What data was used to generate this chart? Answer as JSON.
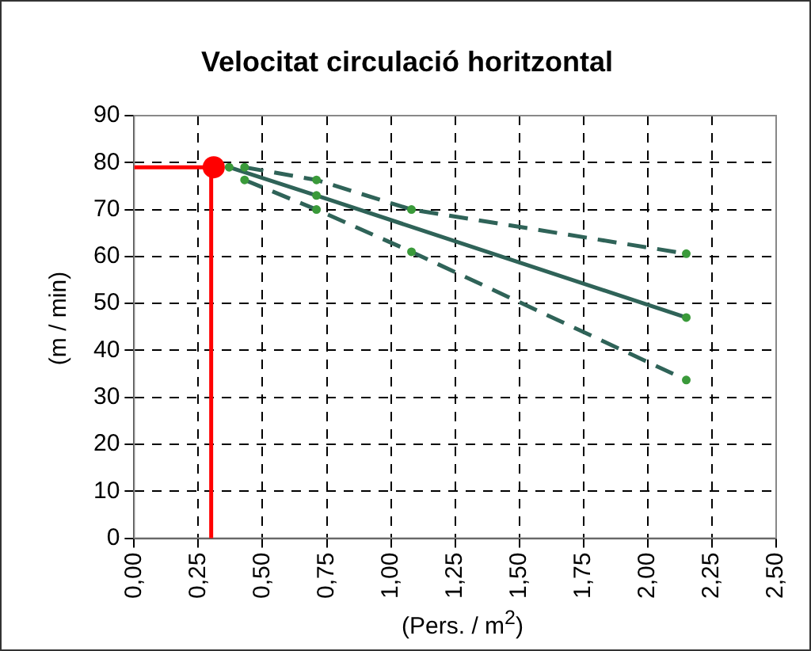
{
  "chart_data": {
    "type": "line",
    "title": "Velocitat circulació horitzontal",
    "xlabel": "(Pers. / m$^{2}$)",
    "ylabel": "(m / min)",
    "xlim": [
      0,
      2.5
    ],
    "ylim": [
      0,
      90
    ],
    "xticks": [
      {
        "value": 0,
        "label": "0,00"
      },
      {
        "value": 0.25,
        "label": "0,25"
      },
      {
        "value": 0.5,
        "label": "0,50"
      },
      {
        "value": 0.75,
        "label": "0,75"
      },
      {
        "value": 1,
        "label": "1,00"
      },
      {
        "value": 1.25,
        "label": "1,25"
      },
      {
        "value": 1.5,
        "label": "1,50"
      },
      {
        "value": 1.75,
        "label": "1,75"
      },
      {
        "value": 2,
        "label": "2,00"
      },
      {
        "value": 2.25,
        "label": "2,25"
      },
      {
        "value": 2.5,
        "label": "2,50"
      }
    ],
    "yticks": [
      0,
      10,
      20,
      30,
      40,
      50,
      60,
      70,
      80,
      90
    ],
    "grid": true,
    "legend": false,
    "series": [
      {
        "color": "#2f6358",
        "x": [
          0.43,
          0.71,
          1.08,
          2.15
        ],
        "values": [
          79,
          76.3,
          70,
          60.6
        ],
        "line_style": "dashed",
        "marker": "circle"
      },
      {
        "color": "#2f6358",
        "x": [
          0.37,
          0.71,
          2.15
        ],
        "values": [
          79,
          73,
          47
        ],
        "line_style": "solid",
        "marker": "circle"
      },
      {
        "color": "#2f6358",
        "x": [
          0.43,
          0.71,
          1.08,
          2.15
        ],
        "values": [
          76.3,
          70,
          61,
          33.7
        ],
        "line_style": "dashed",
        "marker": "circle"
      },
      {
        "color": "#ff0000",
        "x": [
          0,
          0.3,
          0.3
        ],
        "values": [
          79,
          79,
          0
        ],
        "line_style": "solid",
        "marker": "none"
      },
      {
        "type": "scatter",
        "color": "#ff0000",
        "x": [
          0.31
        ],
        "values": [
          79
        ],
        "marker": "circle"
      }
    ]
  }
}
